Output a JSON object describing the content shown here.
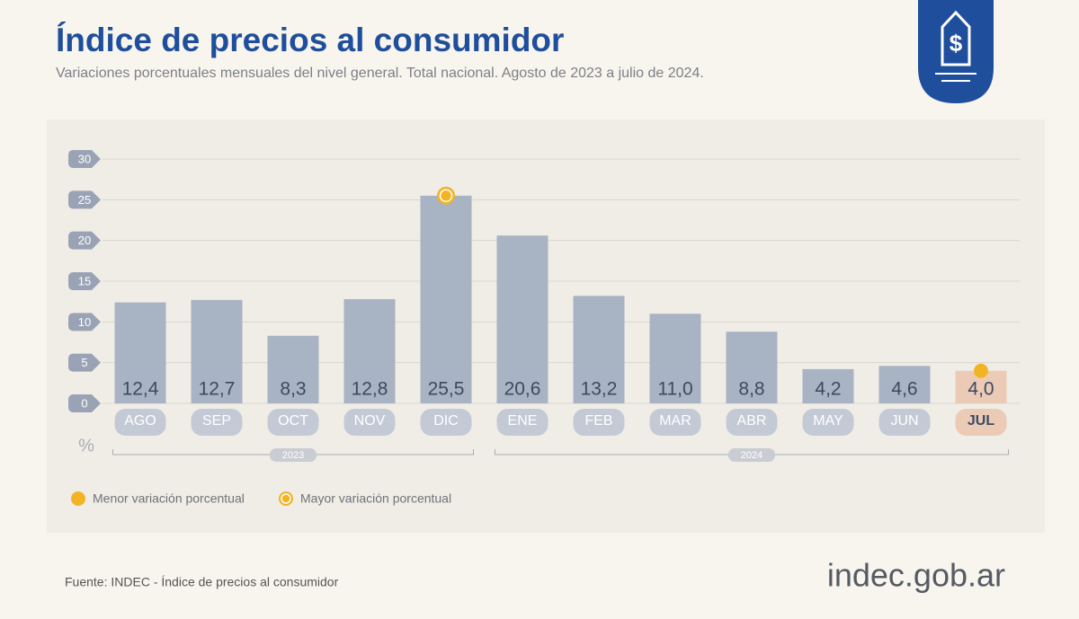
{
  "chart_data": {
    "type": "bar",
    "title": "Índice de precios al consumidor",
    "subtitle": "Variaciones porcentuales mensuales del nivel general. Total nacional. Agosto de 2023 a julio de 2024.",
    "categories": [
      "AGO",
      "SEP",
      "OCT",
      "NOV",
      "DIC",
      "ENE",
      "FEB",
      "MAR",
      "ABR",
      "MAY",
      "JUN",
      "JUL"
    ],
    "values": [
      12.4,
      12.7,
      8.3,
      12.8,
      25.5,
      20.6,
      13.2,
      11.0,
      8.8,
      4.2,
      4.6,
      4.0
    ],
    "value_labels": [
      "12,4",
      "12,7",
      "8,3",
      "12,8",
      "25,5",
      "20,6",
      "13,2",
      "11,0",
      "8,8",
      "4,2",
      "4,6",
      "4,0"
    ],
    "groups": [
      {
        "label": "2023",
        "span": 5
      },
      {
        "label": "2024",
        "span": 7
      }
    ],
    "ylim": [
      0,
      30
    ],
    "yticks": [
      0,
      5,
      10,
      15,
      20,
      25,
      30
    ],
    "ylabel": "%",
    "grid": true,
    "color": "#a8b3c3",
    "highlight_color": "#ebcbb6",
    "marker_color": "#f2b424",
    "legend": [
      "Menor variación porcentual",
      "Mayor variación porcentual"
    ],
    "source": "Fuente: INDEC - Índice de precios al consumidor",
    "logo": "indec.gob.ar"
  }
}
